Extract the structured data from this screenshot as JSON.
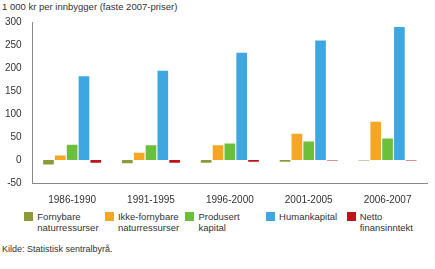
{
  "chart_data": {
    "type": "bar",
    "ylabel": "1 000 kr per innbygger (faste 2007-priser)",
    "source": "Kilde: Statistisk sentralbyrå.",
    "categories": [
      "1986-1990",
      "1991-1995",
      "1996-2000",
      "2001-2005",
      "2006-2007"
    ],
    "series": [
      {
        "name": "Fornybare naturressurser",
        "color": "#8c9a3c",
        "values": [
          -10,
          -7,
          -6,
          -4,
          -1
        ]
      },
      {
        "name": "Ikke-fornybare naturressurser",
        "color": "#f5a623",
        "values": [
          10,
          16,
          32,
          57,
          83
        ]
      },
      {
        "name": "Produsert kapital",
        "color": "#6cbf3a",
        "values": [
          33,
          32,
          36,
          40,
          47
        ]
      },
      {
        "name": "Humankapital",
        "color": "#3ea6e0",
        "values": [
          182,
          194,
          233,
          260,
          289
        ]
      },
      {
        "name": "Netto finansinntekt",
        "color": "#c0141b",
        "values": [
          -6,
          -6,
          -4,
          -1,
          -1
        ]
      }
    ],
    "ylim": [
      -50,
      300
    ],
    "yticks": [
      -50,
      0,
      50,
      100,
      150,
      200,
      250,
      300
    ],
    "grid": false,
    "legend": "bottom"
  }
}
